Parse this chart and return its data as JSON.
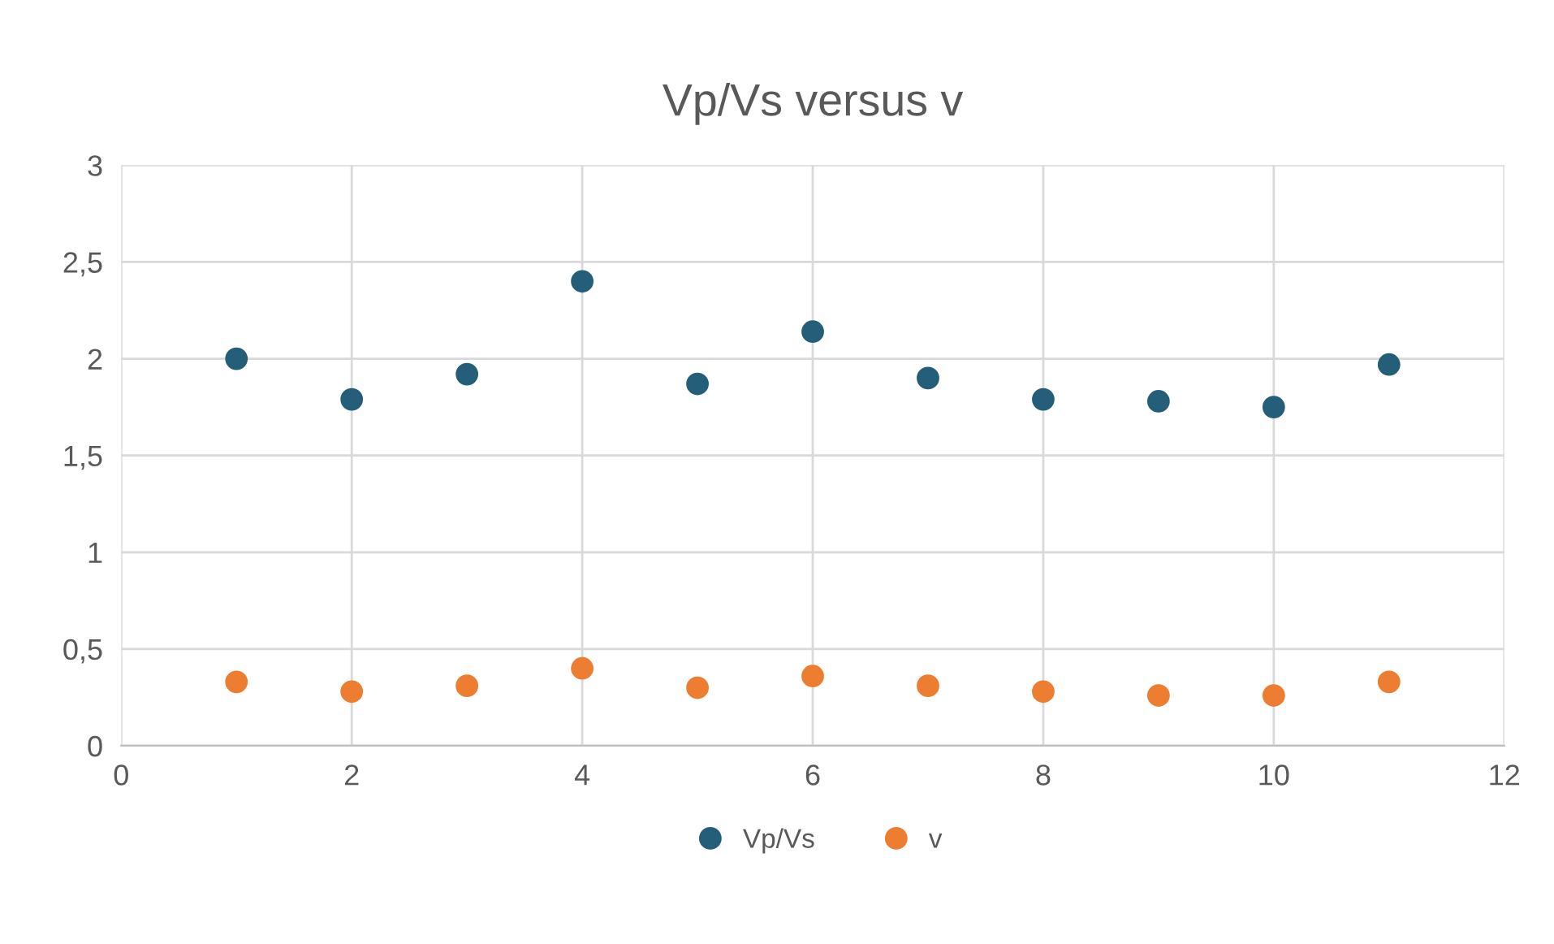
{
  "chart_data": {
    "type": "scatter",
    "title": "Vp/Vs versus v",
    "x": [
      1,
      2,
      3,
      4,
      5,
      6,
      7,
      8,
      9,
      10,
      11
    ],
    "series": [
      {
        "name": "Vp/Vs",
        "color": "#255e79",
        "values": [
          2.0,
          1.79,
          1.92,
          2.4,
          1.87,
          2.14,
          1.9,
          1.79,
          1.78,
          1.75,
          1.97
        ]
      },
      {
        "name": "v",
        "color": "#ed7d31",
        "values": [
          0.33,
          0.28,
          0.31,
          0.4,
          0.3,
          0.36,
          0.31,
          0.28,
          0.26,
          0.26,
          0.33
        ]
      }
    ],
    "xlim": [
      0,
      12
    ],
    "xticks": [
      0,
      2,
      4,
      6,
      8,
      10,
      12
    ],
    "ylim": [
      0,
      3
    ],
    "yticks": [
      0,
      {
        "value": 0.5,
        "label": "0,5"
      },
      1,
      {
        "value": 1.5,
        "label": "1,5"
      },
      2,
      {
        "value": 2.5,
        "label": "2,5"
      },
      3
    ],
    "grid": true,
    "legend": "bottom",
    "marker": "circle"
  }
}
